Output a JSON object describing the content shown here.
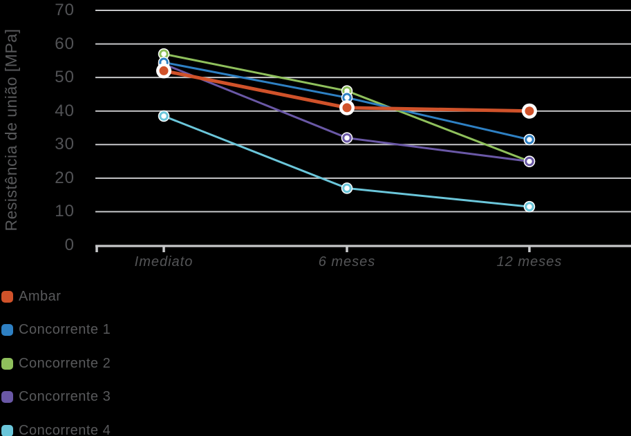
{
  "chart_data": {
    "type": "line",
    "title": "",
    "xlabel": "",
    "ylabel": "Resistência de união [MPa]",
    "categories": [
      "Imediato",
      "6 meses",
      "12 meses"
    ],
    "series": [
      {
        "name": "Ambar",
        "color": "#D0522A",
        "values": [
          52,
          41,
          40
        ]
      },
      {
        "name": "Concorrente 1",
        "color": "#2E80C3",
        "values": [
          54.5,
          44,
          31.5
        ]
      },
      {
        "name": "Concorrente 2",
        "color": "#8FC05C",
        "values": [
          57,
          46,
          25
        ]
      },
      {
        "name": "Concorrente 3",
        "color": "#6A58A6",
        "values": [
          54,
          32,
          25
        ]
      },
      {
        "name": "Concorrente 4",
        "color": "#6BC6DA",
        "values": [
          38.5,
          17,
          11.5
        ]
      }
    ],
    "ylim": [
      0,
      70
    ],
    "y_ticks": [
      0,
      10,
      20,
      30,
      40,
      50,
      60,
      70
    ],
    "grid": "horizontal",
    "grid_color": "#C7C8CA",
    "axis_color": "#C7C8CA",
    "text_color": "#545557",
    "background": "#000000",
    "legend_position": "bottom-left",
    "highlight_series": "Ambar"
  }
}
